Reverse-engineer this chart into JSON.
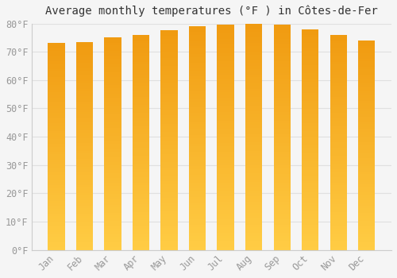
{
  "title": "Average monthly temperatures (°F ) in Côtes-de-Fer",
  "months": [
    "Jan",
    "Feb",
    "Mar",
    "Apr",
    "May",
    "Jun",
    "Jul",
    "Aug",
    "Sep",
    "Oct",
    "Nov",
    "Dec"
  ],
  "values": [
    73,
    73.5,
    75,
    76,
    77.5,
    79,
    79.5,
    80,
    79.5,
    78,
    76,
    74
  ],
  "bar_color_bottom": "#FFCC33",
  "bar_color_top": "#F5A623",
  "background_color": "#F5F5F5",
  "plot_bg_color": "#F5F5F5",
  "grid_color": "#E0E0E0",
  "text_color": "#999999",
  "title_color": "#333333",
  "ylim": [
    0,
    80
  ],
  "yticks": [
    0,
    10,
    20,
    30,
    40,
    50,
    60,
    70,
    80
  ],
  "title_fontsize": 10,
  "tick_fontsize": 8.5,
  "bar_width": 0.6
}
